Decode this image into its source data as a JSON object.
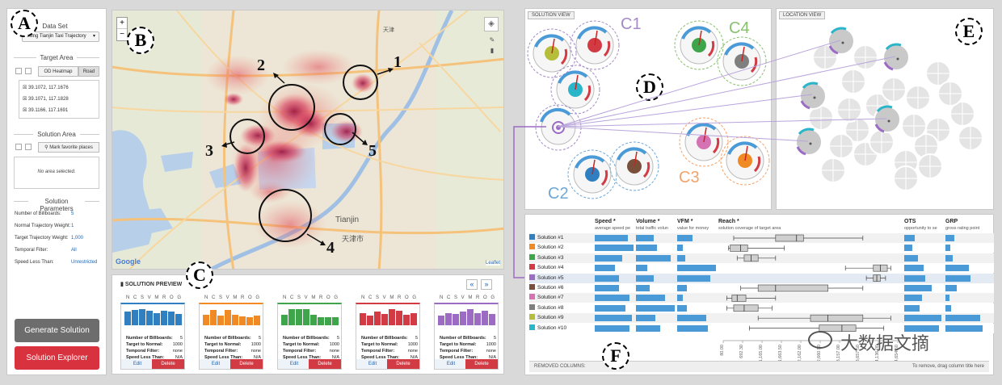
{
  "sidebar": {
    "dataset_title": "Data Set",
    "dataset_value": "Using Tianjin Taxi Trajectory",
    "target_area_title": "Target Area",
    "od_heatmap": "OD Heatmap",
    "road": "Road",
    "coords": [
      "39.1072, 117.1676",
      "39.1071, 117.1828",
      "39.1166, 117.1691"
    ],
    "solution_area_title": "Solution Area",
    "mark_places": "Mark favorite places",
    "no_area": "No area selected.",
    "params_title": "Solution Parameters",
    "params": [
      {
        "label": "Number of Billboards:",
        "value": "5"
      },
      {
        "label": "Normal Trajectory Weight:",
        "value": "1"
      },
      {
        "label": "Target Trajectory Weight:",
        "value": "1,000"
      },
      {
        "label": "Temporal Filter:",
        "value": "All"
      },
      {
        "label": "Speed Less Than:",
        "value": "Unrestricted"
      }
    ],
    "generate_btn": "Generate Solution",
    "explorer_btn": "Solution Explorer"
  },
  "labels": {
    "A": "A",
    "B": "B",
    "C": "C",
    "D": "D",
    "E": "E",
    "F": "F"
  },
  "map": {
    "zoom_in": "+",
    "zoom_out": "−",
    "numbers": [
      "1",
      "2",
      "3",
      "4",
      "5"
    ],
    "city": "Tianjin",
    "city_cn": "天津",
    "city_cn2": "天津市",
    "google": "Google",
    "leaflet": "Leaflet"
  },
  "preview": {
    "title": "SOLUTION PREVIEW",
    "letters": "N C S V M R O G",
    "prev": "«",
    "next": "»",
    "info_labels": [
      "Number of Billboards:",
      "Target to Normal:",
      "Temporal Filter:",
      "Speed Less Than:"
    ],
    "info_values": [
      "5",
      "1000",
      "none",
      "N/A"
    ],
    "edit": "Edit",
    "delete": "Delete",
    "cards": [
      {
        "color": "#2f7fc1",
        "bars": [
          0.75,
          0.85,
          0.9,
          0.8,
          0.7,
          0.8,
          0.75,
          0.65
        ]
      },
      {
        "color": "#f08a24",
        "bars": [
          0.6,
          0.85,
          0.55,
          0.85,
          0.6,
          0.5,
          0.45,
          0.55
        ]
      },
      {
        "color": "#3ea54a",
        "bars": [
          0.6,
          0.9,
          0.9,
          0.9,
          0.6,
          0.45,
          0.45,
          0.45
        ]
      },
      {
        "color": "#d23b44",
        "bars": [
          0.7,
          0.55,
          0.75,
          0.65,
          0.9,
          0.8,
          0.6,
          0.7
        ]
      },
      {
        "color": "#9c6cc4",
        "bars": [
          0.55,
          0.7,
          0.65,
          0.75,
          0.9,
          0.7,
          0.8,
          0.65
        ]
      }
    ]
  },
  "solution_view": {
    "title": "SOLUTION VIEW",
    "clusters": [
      {
        "label": "C1",
        "color": "#a58ac6"
      },
      {
        "label": "C2",
        "color": "#6fa7d6"
      },
      {
        "label": "C3",
        "color": "#f2a36a"
      },
      {
        "label": "C4",
        "color": "#87c16f"
      }
    ]
  },
  "location_view": {
    "title": "LOCATION VIEW"
  },
  "table": {
    "headers": [
      {
        "title": "Speed *",
        "sub": "average speed pe"
      },
      {
        "title": "Volume *",
        "sub": "total traffic volun"
      },
      {
        "title": "VFM *",
        "sub": "value for money"
      },
      {
        "title": "Reach *",
        "sub": "solution coverage of target area"
      },
      {
        "title": "OTS",
        "sub": "opportunity to se"
      },
      {
        "title": "GRP",
        "sub": "gross rating point"
      }
    ],
    "rows": [
      {
        "name": "Solution #1",
        "color": "#2f7fc1",
        "speed": 0.85,
        "volume": 0.45,
        "vfm": 0.4,
        "reach": [
          0.06,
          0.3,
          0.42,
          0.46,
          0.8
        ],
        "ots": 0.28,
        "grp": 0.22
      },
      {
        "name": "Solution #2",
        "color": "#f08a24",
        "speed": 1.0,
        "volume": 0.55,
        "vfm": 0.15,
        "reach": [
          0.03,
          0.04,
          0.1,
          0.14,
          0.35
        ],
        "ots": 0.2,
        "grp": 0.12
      },
      {
        "name": "Solution #3",
        "color": "#3ea54a",
        "speed": 0.7,
        "volume": 0.9,
        "vfm": 0.2,
        "reach": [
          0.08,
          0.12,
          0.16,
          0.2,
          0.3
        ],
        "ots": 0.35,
        "grp": 0.18
      },
      {
        "name": "Solution #4",
        "color": "#d23b44",
        "speed": 0.52,
        "volume": 0.3,
        "vfm": 1.0,
        "reach": [
          0.7,
          0.86,
          0.9,
          0.94,
          0.96
        ],
        "ots": 0.5,
        "grp": 0.6
      },
      {
        "name": "Solution #5",
        "color": "#9c6cc4",
        "speed": 0.62,
        "volume": 0.45,
        "vfm": 0.85,
        "reach": [
          0.82,
          0.86,
          0.88,
          0.9,
          0.93
        ],
        "ots": 0.55,
        "grp": 0.65
      },
      {
        "name": "Solution #6",
        "color": "#7a4f3c",
        "speed": 0.62,
        "volume": 0.35,
        "vfm": 0.25,
        "reach": [
          0.1,
          0.2,
          0.3,
          0.6,
          0.8
        ],
        "ots": 0.7,
        "grp": 0.3
      },
      {
        "name": "Solution #7",
        "color": "#d572b4",
        "speed": 0.9,
        "volume": 0.75,
        "vfm": 0.15,
        "reach": [
          0.02,
          0.05,
          0.08,
          0.13,
          0.3
        ],
        "ots": 0.45,
        "grp": 0.1
      },
      {
        "name": "Solution #8",
        "color": "#7f7f7f",
        "speed": 0.8,
        "volume": 1.0,
        "vfm": 0.25,
        "reach": [
          0.02,
          0.06,
          0.12,
          0.2,
          0.28
        ],
        "ots": 0.4,
        "grp": 0.15
      },
      {
        "name": "Solution #9",
        "color": "#b5bd3a",
        "speed": 0.95,
        "volume": 0.5,
        "vfm": 0.75,
        "reach": [
          0.2,
          0.5,
          0.6,
          0.8,
          0.96
        ],
        "ots": 0.95,
        "grp": 0.9
      },
      {
        "name": "Solution #10",
        "color": "#2ab5c9",
        "speed": 0.9,
        "volume": 0.62,
        "vfm": 0.8,
        "reach": [
          0.15,
          0.55,
          0.68,
          0.76,
          0.92
        ],
        "ots": 0.9,
        "grp": 0.95
      }
    ],
    "axis_ticks": [
      "80.00",
      "692.30",
      "1,165.00",
      "1,663.50",
      "2,162.00",
      "2,660.50",
      "3,157.00",
      "3,657.50",
      "4,136.00",
      "4,654.50"
    ],
    "removed": "REMOVED COLUMNS:",
    "drag_hint": "To remove, drag column title here"
  },
  "watermark": "大数据文摘"
}
